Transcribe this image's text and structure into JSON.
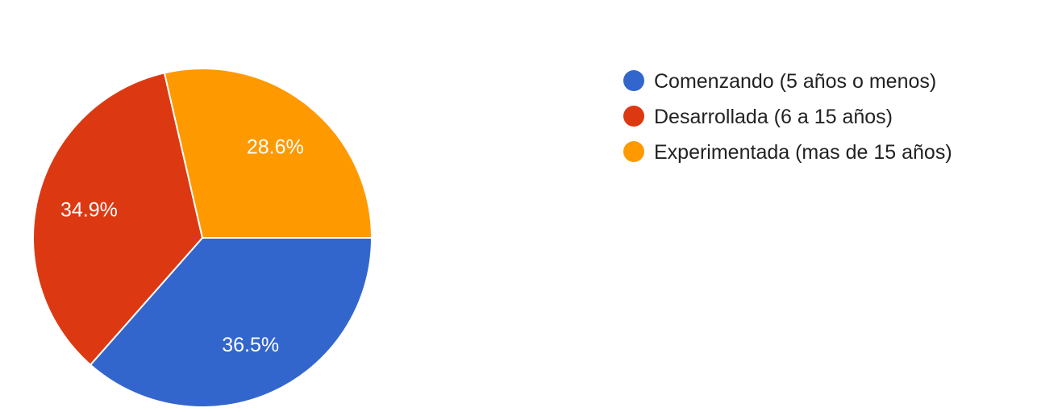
{
  "chart_data": {
    "type": "pie",
    "categories": [
      "Comenzando (5 años o menos)",
      "Desarrollada (6 a 15 años)",
      "Experimentada (mas de 15 años)"
    ],
    "values": [
      36.5,
      34.9,
      28.6
    ],
    "labels": [
      "36.5%",
      "34.9%",
      "28.6%"
    ],
    "colors": [
      "#3366cc",
      "#dc3912",
      "#ff9900"
    ],
    "legend_position": "right"
  }
}
